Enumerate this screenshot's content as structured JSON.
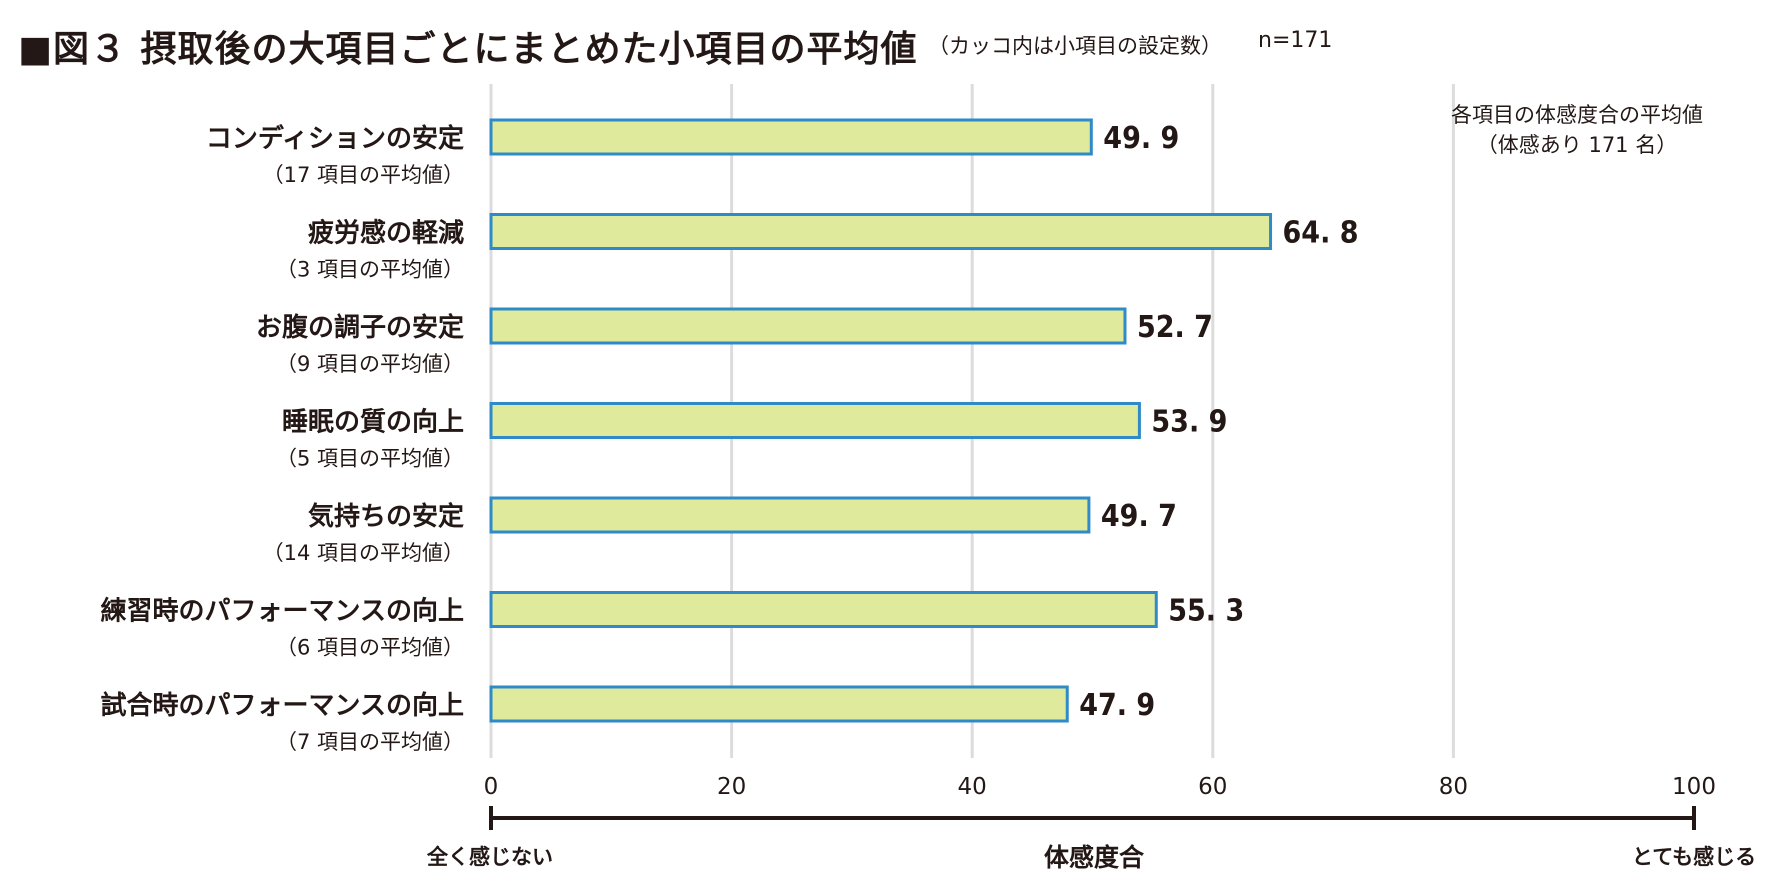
{
  "title": {
    "main": "■図３ 摂取後の大項目ごとにまとめた小項目の平均値",
    "note": "（カッコ内は小項目の設定数）",
    "n": "n=171"
  },
  "annotation": [
    "各項目の体感度合の平均値",
    "（体感あり 171 名）"
  ],
  "chart_data": {
    "type": "bar",
    "orientation": "horizontal",
    "categories": [
      "コンディションの安定",
      "疲労感の軽減",
      "お腹の調子の安定",
      "睡眠の質の向上",
      "気持ちの安定",
      "練習時のパフォーマンスの向上",
      "試合時のパフォーマンスの向上"
    ],
    "sublabels": [
      "（17 項目の平均値）",
      "（3 項目の平均値）",
      "（9 項目の平均値）",
      "（5 項目の平均値）",
      "（14 項目の平均値）",
      "（6 項目の平均値）",
      "（7 項目の平均値）"
    ],
    "values": [
      49.9,
      64.8,
      52.7,
      53.9,
      49.7,
      55.3,
      47.9
    ],
    "value_labels": [
      "49. 9",
      "64. 8",
      "52. 7",
      "53. 9",
      "49. 7",
      "55. 3",
      "47. 9"
    ],
    "xlim": [
      0,
      100
    ],
    "xticks": [
      0,
      20,
      40,
      60,
      80,
      100
    ],
    "xlabel": "体感度合",
    "x_left_label": "全く感じない",
    "x_right_label": "とても感じる",
    "grid": true,
    "colors": {
      "bar_fill": "#e0ea9c",
      "bar_stroke": "#2e8bc8",
      "grid": "#dcdcdc",
      "axis": "#231815"
    }
  }
}
